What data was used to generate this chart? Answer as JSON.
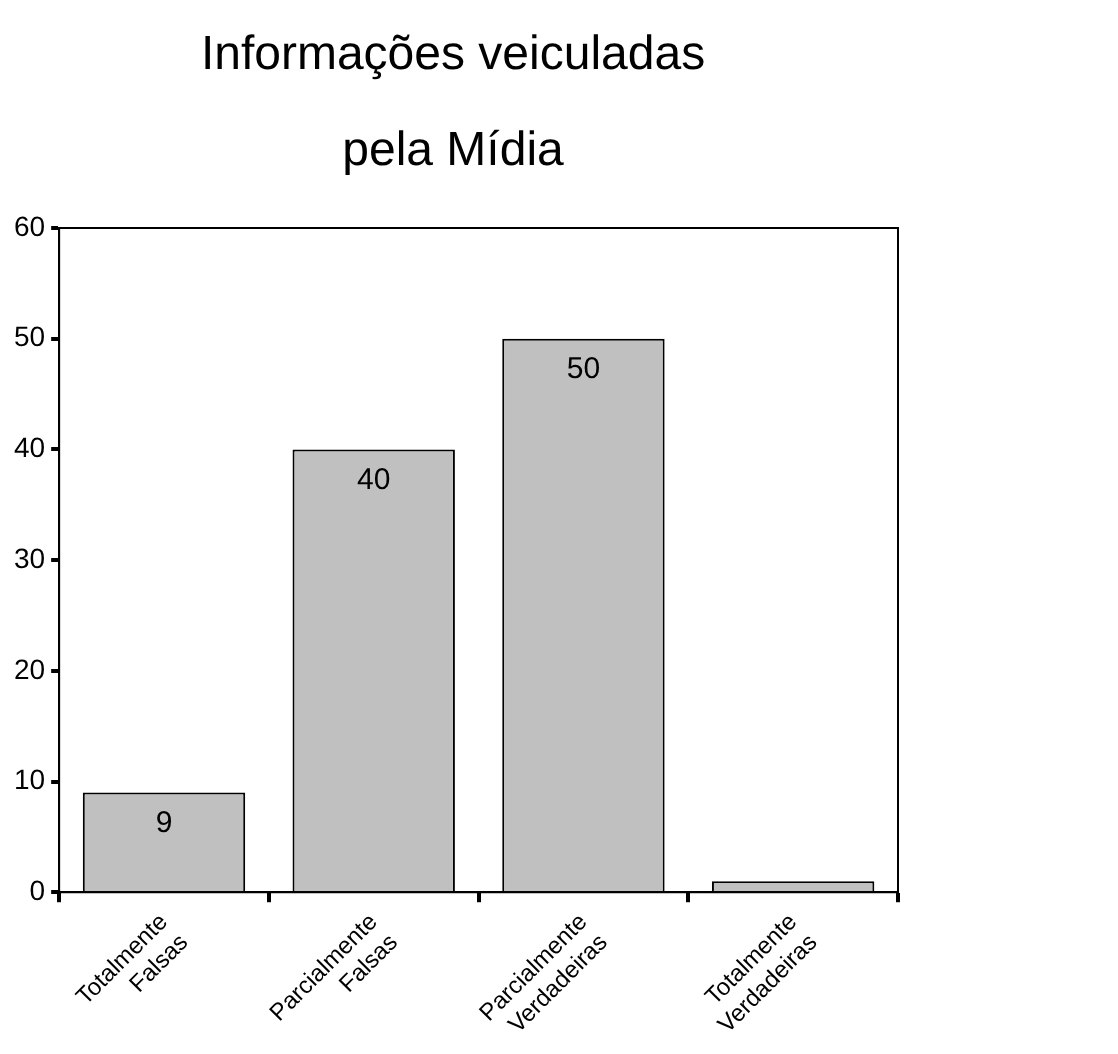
{
  "chart_data": {
    "type": "bar",
    "title": "Informações veiculadas\npela Mídia",
    "categories": [
      "Totalmente Falsas",
      "Parcialmente Falsas",
      "Parcialmente Verdadeiras",
      "Totalmente Verdadeiras"
    ],
    "values": [
      9,
      40,
      50,
      1
    ],
    "value_labels": [
      "9",
      "40",
      "50",
      null
    ],
    "color": "#c0c0c0",
    "ylim": [
      0,
      60
    ],
    "yticks": [
      0,
      10,
      20,
      30,
      40,
      50,
      60
    ],
    "grid": false,
    "legend": false
  }
}
